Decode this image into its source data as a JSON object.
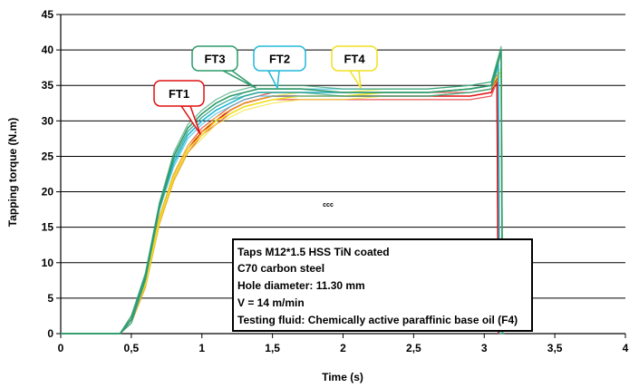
{
  "chart_data": {
    "type": "line",
    "xlabel": "Time (s)",
    "ylabel": "Tapping torque  (N.m)",
    "xlim": [
      0,
      4
    ],
    "ylim": [
      0,
      45
    ],
    "x_ticks": [
      "0",
      "0,5",
      "1",
      "1,5",
      "2",
      "2,5",
      "3",
      "3,5",
      "4"
    ],
    "y_ticks": [
      "0",
      "5",
      "10",
      "15",
      "20",
      "25",
      "30",
      "35",
      "40",
      "45"
    ],
    "grid": "horizontal",
    "series": [
      {
        "name": "FT1",
        "color": "#e01010",
        "callout": "FT1",
        "x": [
          0,
          0.42,
          0.5,
          0.6,
          0.7,
          0.8,
          0.9,
          1.0,
          1.1,
          1.2,
          1.3,
          1.4,
          1.5,
          1.7,
          2.0,
          2.3,
          2.6,
          2.9,
          3.05,
          3.09,
          3.1,
          3.11
        ],
        "y": [
          0,
          0,
          2,
          7,
          16,
          22,
          26,
          28.5,
          30,
          31.5,
          32.5,
          33,
          33.5,
          33.5,
          33.5,
          33.5,
          33.5,
          33.5,
          34,
          36,
          0,
          0
        ]
      },
      {
        "name": "FT2",
        "color": "#22b8d8",
        "callout": "FT2",
        "x": [
          0,
          0.42,
          0.5,
          0.6,
          0.7,
          0.8,
          0.9,
          1.0,
          1.1,
          1.2,
          1.3,
          1.4,
          1.5,
          1.7,
          2.0,
          2.3,
          2.6,
          2.9,
          3.05,
          3.1,
          3.11,
          3.12
        ],
        "y": [
          0,
          0,
          2,
          8,
          18,
          24,
          28,
          30,
          31.5,
          32.5,
          33.5,
          34,
          34,
          34,
          34,
          34,
          34,
          34.5,
          35,
          38,
          0,
          0
        ]
      },
      {
        "name": "FT3",
        "color": "#2e9a6a",
        "callout": "FT3",
        "x": [
          0,
          0.42,
          0.5,
          0.6,
          0.7,
          0.8,
          0.9,
          1.0,
          1.1,
          1.2,
          1.3,
          1.4,
          1.5,
          1.7,
          2.0,
          2.3,
          2.6,
          2.9,
          3.05,
          3.12,
          3.13,
          3.14
        ],
        "y": [
          0,
          0,
          2,
          8,
          18,
          25,
          29,
          31,
          32.5,
          33.5,
          34,
          34.5,
          34.5,
          34.5,
          34,
          34,
          34,
          34.5,
          35,
          40,
          0,
          0
        ]
      },
      {
        "name": "FT4",
        "color": "#f0e020",
        "callout": "FT4",
        "x": [
          0,
          0.42,
          0.5,
          0.6,
          0.7,
          0.8,
          0.9,
          1.0,
          1.1,
          1.2,
          1.3,
          1.4,
          1.5,
          1.7,
          2.0,
          2.3,
          2.6,
          2.9,
          3.05,
          3.12,
          3.13,
          3.14
        ],
        "y": [
          0,
          0,
          2,
          7,
          16,
          22,
          26,
          28,
          30,
          31,
          32,
          32.5,
          33,
          33.5,
          33.5,
          34,
          34,
          34.5,
          35,
          37,
          0,
          0
        ]
      }
    ],
    "annotation_small": "ccc",
    "info_box": [
      "Taps M12*1.5 HSS TiN coated",
      "C70 carbon steel",
      "Hole diameter: 11.30 mm",
      "V = 14 m/min",
      "Testing fluid: Chemically active paraffinic base oil (F4)"
    ]
  }
}
